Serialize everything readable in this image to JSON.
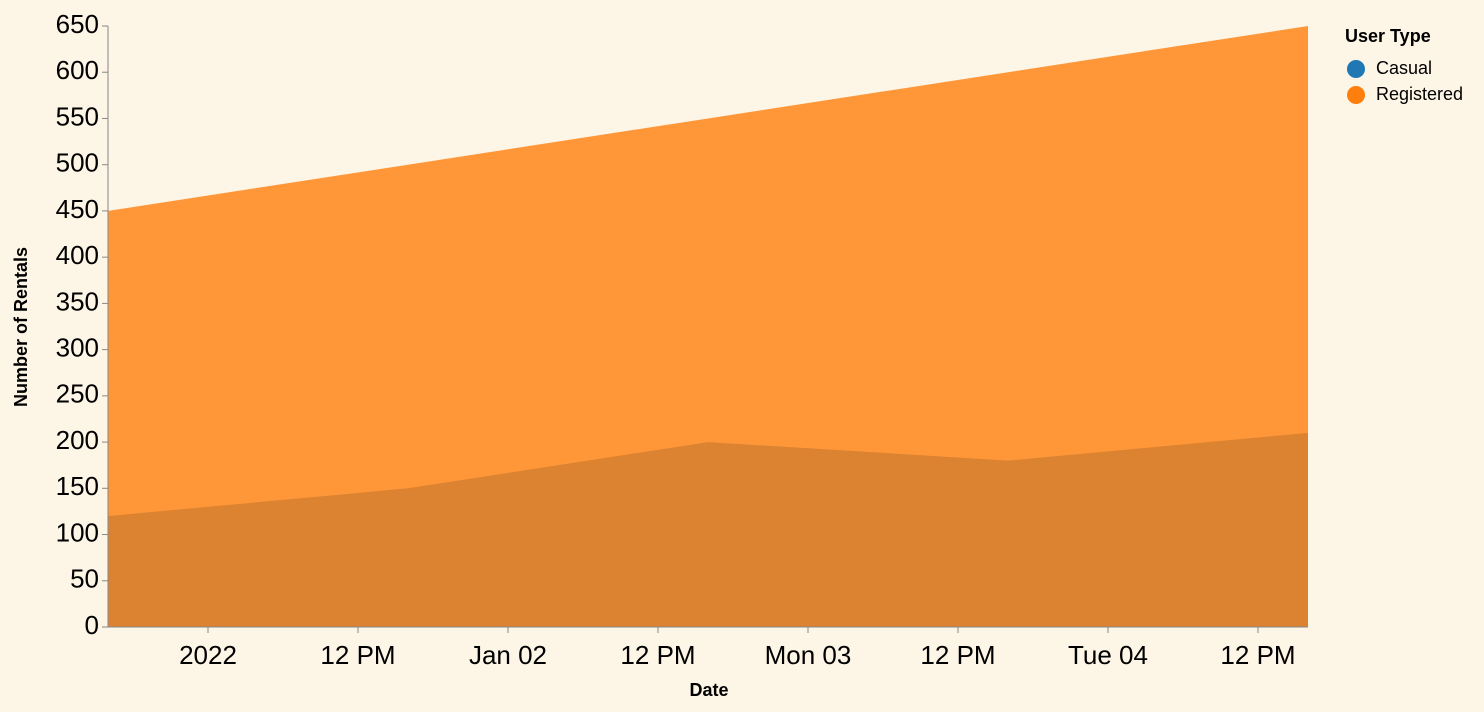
{
  "chart_data": {
    "type": "area",
    "x_label": "Date",
    "y_label": "Number of Rentals",
    "legend_title": "User Type",
    "legend": "top-right",
    "x": [
      "2022-01-01",
      "2022-01-02",
      "2022-01-03",
      "2022-01-04",
      "2022-01-05"
    ],
    "xlim": [
      "2022-01-01",
      "2022-01-05"
    ],
    "xticks": [
      {
        "value": "2022-01-01T08:00",
        "label": "2022"
      },
      {
        "value": "2022-01-01T20:00",
        "label": "12 PM"
      },
      {
        "value": "2022-01-02T08:00",
        "label": "Jan 02"
      },
      {
        "value": "2022-01-02T20:00",
        "label": "12 PM"
      },
      {
        "value": "2022-01-03T08:00",
        "label": "Mon 03"
      },
      {
        "value": "2022-01-03T20:00",
        "label": "12 PM"
      },
      {
        "value": "2022-01-04T08:00",
        "label": "Tue 04"
      },
      {
        "value": "2022-01-04T20:00",
        "label": "12 PM"
      }
    ],
    "ylim": [
      0,
      650
    ],
    "yticks": [
      0,
      50,
      100,
      150,
      200,
      250,
      300,
      350,
      400,
      450,
      500,
      550,
      600,
      650
    ],
    "opacity": 0.8,
    "series": [
      {
        "name": "Casual",
        "color": "#1f77b4",
        "values": [
          120,
          150,
          200,
          180,
          210
        ]
      },
      {
        "name": "Registered",
        "color": "#ff7f0e",
        "values": [
          450,
          500,
          550,
          600,
          650
        ]
      }
    ]
  }
}
